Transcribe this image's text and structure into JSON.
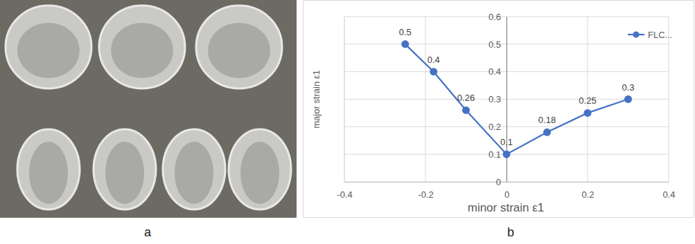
{
  "chart_data": {
    "type": "line",
    "x_label": "minor strain ε1",
    "y_label": "major strain ε1",
    "x": [
      -0.25,
      -0.18,
      -0.1,
      0,
      0.1,
      0.2,
      0.3
    ],
    "series": [
      {
        "name": "FLC...",
        "color": "#4472c4",
        "marker": "circle",
        "values": [
          0.5,
          0.4,
          0.26,
          0.1,
          0.18,
          0.25,
          0.3
        ]
      }
    ],
    "xlim": [
      -0.4,
      0.4
    ],
    "xticks": [
      -0.4,
      -0.2,
      0,
      0.2,
      0.4
    ],
    "ylim": [
      0,
      0.6
    ],
    "yticks": [
      0,
      0.1,
      0.2,
      0.3,
      0.4,
      0.5,
      0.6
    ],
    "grid": true,
    "legend": "top-right",
    "data_labels": true
  },
  "panel_labels": [
    "a",
    "b"
  ]
}
